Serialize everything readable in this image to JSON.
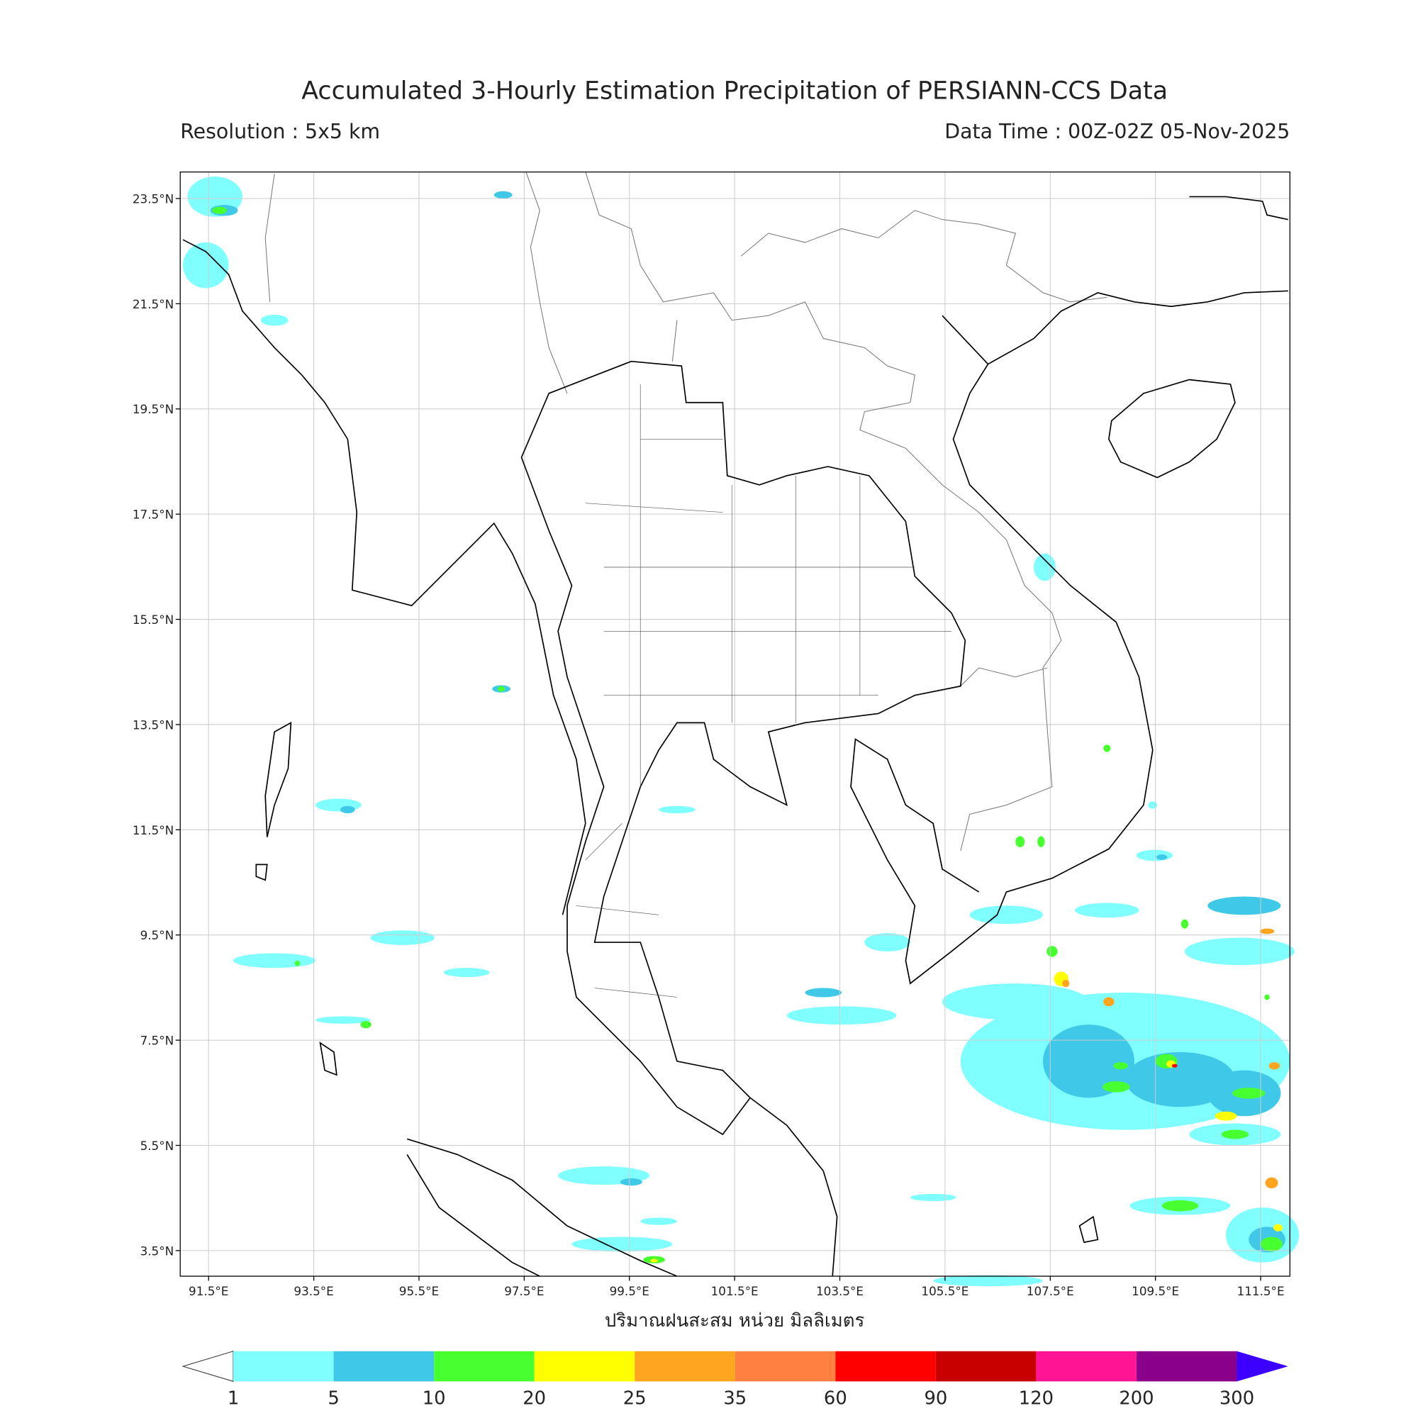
{
  "header": {
    "title": "Accumulated 3-Hourly Estimation Precipitation of PERSIANN-CCS Data",
    "resolution": "Resolution : 5x5 km",
    "data_time": "Data Time : 00Z-02Z 05-Nov-2025"
  },
  "map": {
    "lat_labels": [
      "23.5°N",
      "21.5°N",
      "19.5°N",
      "17.5°N",
      "15.5°N",
      "13.5°N",
      "11.5°N",
      "9.5°N",
      "7.5°N",
      "5.5°N",
      "3.5°N"
    ],
    "lon_labels": [
      "91.5°E",
      "93.5°E",
      "95.5°E",
      "97.5°E",
      "99.5°E",
      "101.5°E",
      "103.5°E",
      "105.5°E",
      "107.5°E",
      "109.5°E",
      "111.5°E"
    ],
    "xlabel": "ปริมาณฝนสะสม หน่วย มิลลิเมตร"
  },
  "colorbar": {
    "levels": [
      1,
      5,
      10,
      20,
      25,
      35,
      60,
      90,
      120,
      200,
      300
    ],
    "colors": [
      "#80ffff",
      "#40c8e8",
      "#48ff30",
      "#ffff00",
      "#ffa520",
      "#ff8040",
      "#ff0000",
      "#c80000",
      "#ff1493",
      "#8b008b"
    ],
    "over_color": "#3c00ff"
  }
}
